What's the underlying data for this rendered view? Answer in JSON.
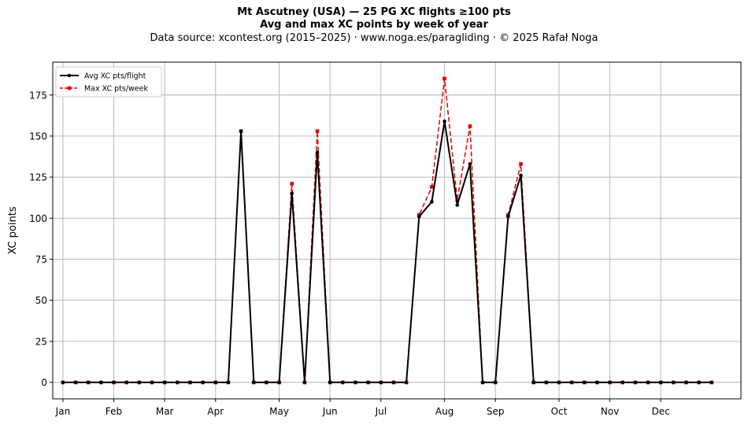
{
  "chart_data": {
    "type": "line",
    "title": "Mt Ascutney (USA)  —  25 PG XC flights ≥100 pts",
    "subtitle": "Avg and max XC points by week of year",
    "source_line": "Data source: xcontest.org (2015–2025)  ·  www.noga.es/paragliding  ·  © 2025 Rafał Noga",
    "xlabel": "",
    "ylabel": "XC points",
    "xlim": [
      0.2,
      54.3
    ],
    "ylim": [
      -10,
      195
    ],
    "yticks": [
      0,
      25,
      50,
      75,
      100,
      125,
      150,
      175
    ],
    "xtick_positions": [
      1,
      5,
      9,
      13,
      18,
      22,
      26,
      31,
      35,
      40,
      44,
      48
    ],
    "xtick_labels": [
      "Jan",
      "Feb",
      "Mar",
      "Apr",
      "May",
      "Jun",
      "Jul",
      "Aug",
      "Sep",
      "Oct",
      "Nov",
      "Dec"
    ],
    "grid": true,
    "legend_position": "top-left",
    "x": [
      1,
      2,
      3,
      4,
      5,
      6,
      7,
      8,
      9,
      10,
      11,
      12,
      13,
      14,
      15,
      16,
      17,
      18,
      19,
      20,
      21,
      22,
      23,
      24,
      25,
      26,
      27,
      28,
      29,
      30,
      31,
      32,
      33,
      34,
      35,
      36,
      37,
      38,
      39,
      40,
      41,
      42,
      43,
      44,
      45,
      46,
      47,
      48,
      49,
      50,
      51,
      52
    ],
    "series": [
      {
        "name": "Avg XC pts/flight",
        "color": "#000000",
        "style": "solid",
        "marker": "circle",
        "values": [
          0,
          0,
          0,
          0,
          0,
          0,
          0,
          0,
          0,
          0,
          0,
          0,
          0,
          0,
          153,
          0,
          0,
          0,
          115,
          0,
          140,
          0,
          0,
          0,
          0,
          0,
          0,
          0,
          101,
          110,
          159,
          108,
          133,
          0,
          0,
          101,
          126,
          0,
          0,
          0,
          0,
          0,
          0,
          0,
          0,
          0,
          0,
          0,
          0,
          0,
          0,
          0
        ]
      },
      {
        "name": "Max XC pts/week",
        "color": "#e00000",
        "style": "dashed",
        "marker": "square",
        "values": [
          0,
          0,
          0,
          0,
          0,
          0,
          0,
          0,
          0,
          0,
          0,
          0,
          0,
          0,
          153,
          0,
          0,
          0,
          121,
          0,
          153,
          0,
          0,
          0,
          0,
          0,
          0,
          0,
          102,
          119,
          185,
          111,
          156,
          0,
          0,
          102,
          133,
          0,
          0,
          0,
          0,
          0,
          0,
          0,
          0,
          0,
          0,
          0,
          0,
          0,
          0,
          0
        ]
      }
    ]
  }
}
